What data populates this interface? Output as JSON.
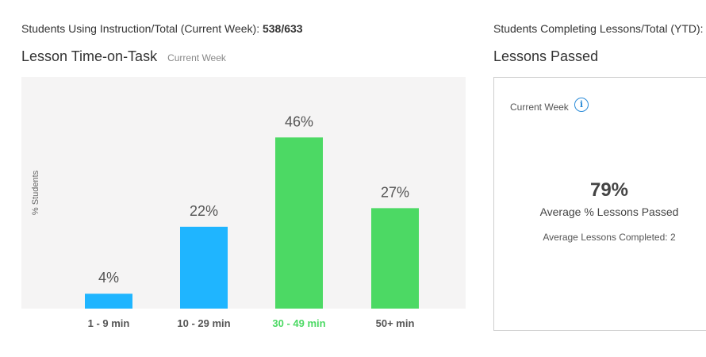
{
  "left_stat": {
    "label": "Students Using Instruction/Total (Current Week):",
    "value": "538/633"
  },
  "right_stat": {
    "label": "Students Completing Lessons/Total (YTD):"
  },
  "time_on_task": {
    "title": "Lesson Time-on-Task",
    "period": "Current Week"
  },
  "lessons_passed": {
    "title": "Lessons Passed",
    "period": "Current Week",
    "info_icon": "info-icon",
    "percent": "79%",
    "percent_label": "Average % Lessons Passed",
    "avg_completed_label": "Average Lessons Completed:",
    "avg_completed_value": "2"
  },
  "chart_data": {
    "type": "bar",
    "categories": [
      "1 - 9 min",
      "10 - 29 min",
      "30 - 49 min",
      "50+ min"
    ],
    "values": [
      4,
      22,
      46,
      27
    ],
    "value_labels": [
      "4%",
      "22%",
      "46%",
      "27%"
    ],
    "ylabel": "% Students",
    "ylim": [
      0,
      100
    ],
    "bar_colors": [
      "#1fb5ff",
      "#1fb5ff",
      "#4cd964",
      "#4cd964"
    ],
    "category_label_colors": [
      "#555555",
      "#555555",
      "#4cd964",
      "#555555"
    ],
    "plot_background": "#f5f4f4",
    "grid": false,
    "legend": "none"
  }
}
